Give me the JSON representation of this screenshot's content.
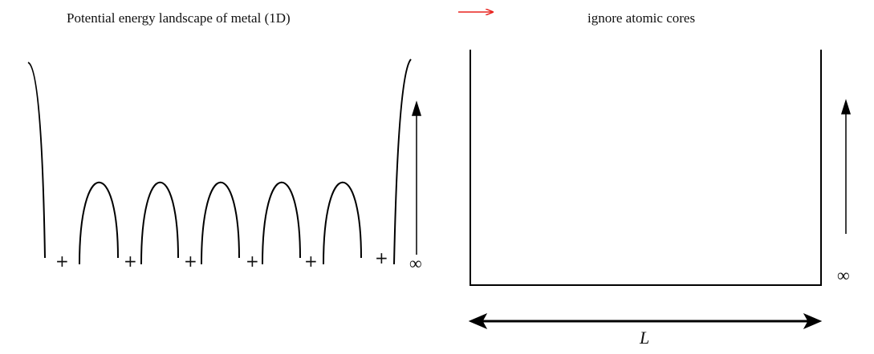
{
  "left_panel": {
    "title": "Potential energy landscape of metal (1D)",
    "core_markers": [
      "+",
      "+",
      "+",
      "+",
      "+",
      "+"
    ],
    "infinity_label": "∞"
  },
  "transition_arrow": {
    "color": "#e8231f"
  },
  "right_panel": {
    "title": "ignore atomic cores",
    "infinity_label": "∞",
    "length_label": "L"
  },
  "colors": {
    "line": "#000000",
    "text": "#111111"
  }
}
